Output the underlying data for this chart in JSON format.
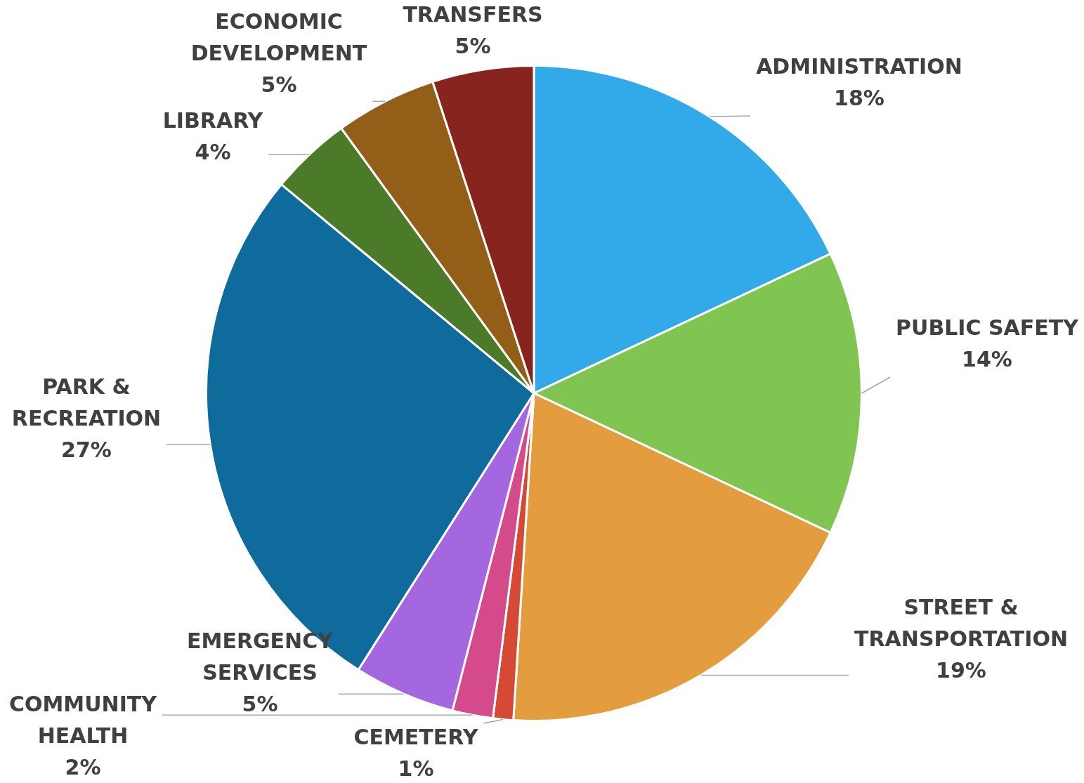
{
  "chart_data": {
    "type": "pie",
    "categories": [
      "ADMINISTRATION",
      "PUBLIC SAFETY",
      "STREET & TRANSPORTATION",
      "CEMETERY",
      "COMMUNITY HEALTH",
      "EMERGENCY SERVICES",
      "PARK & RECREATION",
      "LIBRARY",
      "ECONOMIC DEVELOPMENT",
      "TRANSFERS"
    ],
    "values": [
      18,
      14,
      19,
      1,
      2,
      5,
      27,
      4,
      5,
      5
    ],
    "value_labels": [
      "18%",
      "14%",
      "19%",
      "1%",
      "2%",
      "5%",
      "27%",
      "4%",
      "5%",
      "5%"
    ],
    "colors": [
      "#32aaea",
      "#80c451",
      "#e39d3e",
      "#d64a35",
      "#d54a8b",
      "#a567e0",
      "#0e6b9c",
      "#4b7a29",
      "#935e17",
      "#87241e"
    ],
    "legend": false
  }
}
